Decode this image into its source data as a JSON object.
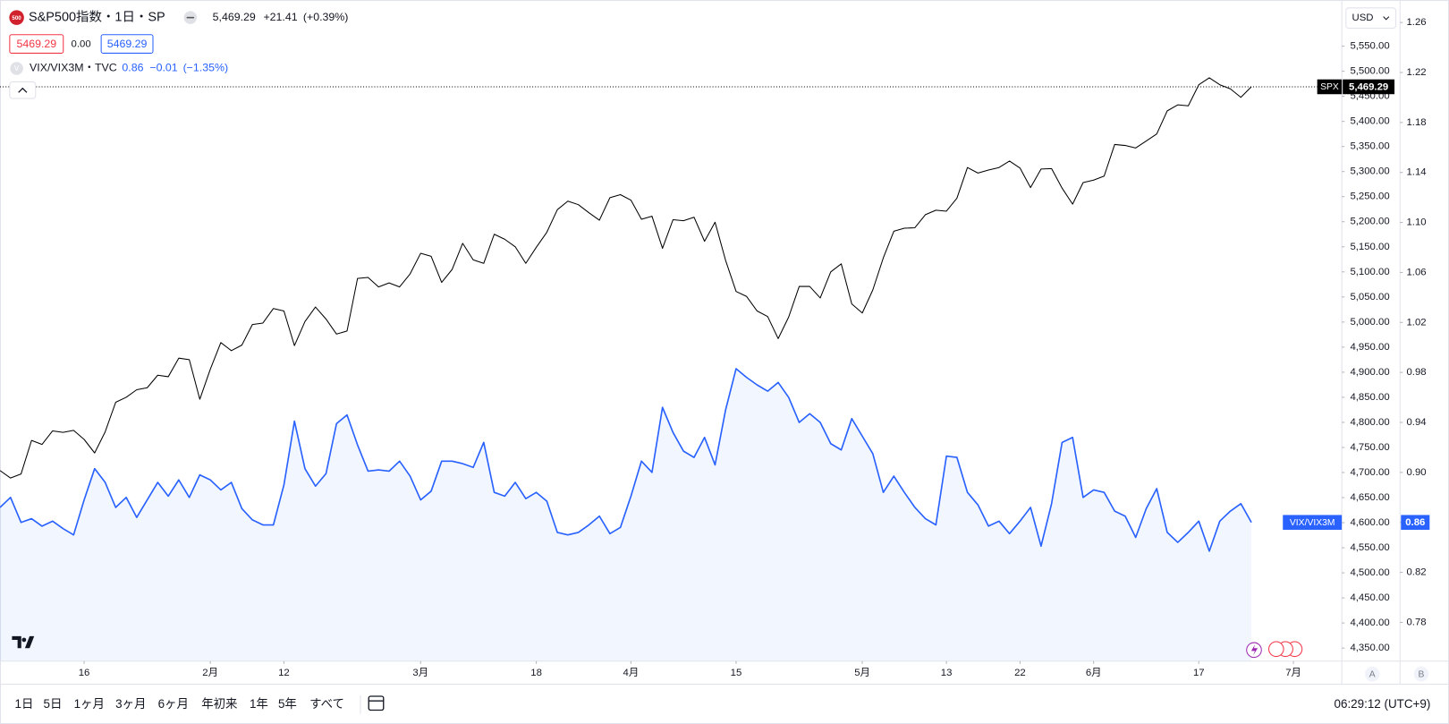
{
  "header": {
    "symbol_icon": "500",
    "title": "S&P500指数・1日・SP",
    "price": "5,469.29",
    "change": "+21.41",
    "change_pct": "(+0.39%)",
    "bid": "5469.29",
    "spread": "0.00",
    "ask": "5469.29",
    "compare_icon": "V",
    "compare_title": "VIX/VIX3M・TVC",
    "compare_price": "0.86",
    "compare_change": "−0.01",
    "compare_change_pct": "(−1.35%)"
  },
  "currency": "USD",
  "chart_data": {
    "type": "line",
    "xlim": [
      0,
      127.6
    ],
    "xticks": [
      {
        "value": 8,
        "label": "16"
      },
      {
        "value": 20,
        "label": "2月"
      },
      {
        "value": 27,
        "label": "12"
      },
      {
        "value": 40,
        "label": "3月"
      },
      {
        "value": 51,
        "label": "18"
      },
      {
        "value": 60,
        "label": "4月"
      },
      {
        "value": 70,
        "label": "15"
      },
      {
        "value": 82,
        "label": "5月"
      },
      {
        "value": 90,
        "label": "13"
      },
      {
        "value": 97,
        "label": "22"
      },
      {
        "value": 104,
        "label": "6月"
      },
      {
        "value": 114,
        "label": "17"
      },
      {
        "value": 123,
        "label": "7月"
      }
    ],
    "ylim": [
      4324,
      5642
    ],
    "yticks": [
      {
        "value": 4350,
        "label": "4,350.00"
      },
      {
        "value": 4400,
        "label": "4,400.00"
      },
      {
        "value": 4450,
        "label": "4,450.00"
      },
      {
        "value": 4500,
        "label": "4,500.00"
      },
      {
        "value": 4550,
        "label": "4,550.00"
      },
      {
        "value": 4600,
        "label": "4,600.00"
      },
      {
        "value": 4650,
        "label": "4,650.00"
      },
      {
        "value": 4700,
        "label": "4,700.00"
      },
      {
        "value": 4750,
        "label": "4,750.00"
      },
      {
        "value": 4800,
        "label": "4,800.00"
      },
      {
        "value": 4850,
        "label": "4,850.00"
      },
      {
        "value": 4900,
        "label": "4,900.00"
      },
      {
        "value": 4950,
        "label": "4,950.00"
      },
      {
        "value": 5000,
        "label": "5,000.00"
      },
      {
        "value": 5050,
        "label": "5,050.00"
      },
      {
        "value": 5100,
        "label": "5,100.00"
      },
      {
        "value": 5150,
        "label": "5,150.00"
      },
      {
        "value": 5200,
        "label": "5,200.00"
      },
      {
        "value": 5250,
        "label": "5,250.00"
      },
      {
        "value": 5300,
        "label": "5,300.00"
      },
      {
        "value": 5350,
        "label": "5,350.00"
      },
      {
        "value": 5400,
        "label": "5,400.00"
      },
      {
        "value": 5450,
        "label": "5,450.00"
      },
      {
        "value": 5500,
        "label": "5,500.00"
      },
      {
        "value": 5550,
        "label": "5,550.00"
      }
    ],
    "y2lim": [
      0.749,
      1.278
    ],
    "y2ticks": [
      0.78,
      0.82,
      0.86,
      {
        "value": 0.9,
        "label": "0.90"
      },
      0.94,
      0.98,
      1.02,
      1.06,
      {
        "value": 1.1,
        "label": "1.10"
      },
      1.14,
      1.18,
      1.22,
      1.26
    ],
    "series": [
      {
        "name": "SPX",
        "color": "#000000",
        "last_label": "5,469.29",
        "values": [
          4704,
          4689,
          4697,
          4764,
          4756,
          4783,
          4780,
          4784,
          4766,
          4739,
          4781,
          4840,
          4850,
          4865,
          4869,
          4894,
          4891,
          4928,
          4925,
          4846,
          4906,
          4959,
          4943,
          4954,
          4995,
          4998,
          5027,
          5022,
          4953,
          5001,
          5030,
          5006,
          4976,
          4982,
          5087,
          5089,
          5070,
          5078,
          5070,
          5096,
          5137,
          5131,
          5079,
          5105,
          5157,
          5124,
          5117,
          5175,
          5165,
          5150,
          5117,
          5149,
          5179,
          5224,
          5241,
          5234,
          5218,
          5203,
          5248,
          5254,
          5243,
          5205,
          5211,
          5147,
          5204,
          5202,
          5209,
          5161,
          5199,
          5123,
          5061,
          5051,
          5022,
          5011,
          4967,
          5010,
          5071,
          5071,
          5048,
          5100,
          5116,
          5036,
          5018,
          5064,
          5128,
          5181,
          5187,
          5188,
          5214,
          5223,
          5221,
          5247,
          5308,
          5297,
          5303,
          5308,
          5321,
          5307,
          5268,
          5305,
          5306,
          5267,
          5235,
          5278,
          5283,
          5291,
          5354,
          5352,
          5347,
          5361,
          5375,
          5421,
          5433,
          5431,
          5473,
          5487,
          5473,
          5465,
          5448,
          5469
        ]
      },
      {
        "name": "VIX/VIX3M",
        "color": "#2962ff",
        "axis": "y2",
        "area": true,
        "last_label": "0.86",
        "values": [
          0.872,
          0.88,
          0.86,
          0.863,
          0.857,
          0.861,
          0.855,
          0.85,
          0.878,
          0.903,
          0.892,
          0.872,
          0.88,
          0.864,
          0.878,
          0.892,
          0.881,
          0.894,
          0.88,
          0.898,
          0.894,
          0.886,
          0.892,
          0.871,
          0.862,
          0.858,
          0.858,
          0.89,
          0.941,
          0.903,
          0.889,
          0.899,
          0.939,
          0.946,
          0.922,
          0.901,
          0.902,
          0.901,
          0.909,
          0.897,
          0.878,
          0.885,
          0.909,
          0.909,
          0.907,
          0.904,
          0.924,
          0.884,
          0.881,
          0.892,
          0.879,
          0.884,
          0.877,
          0.852,
          0.85,
          0.852,
          0.858,
          0.865,
          0.851,
          0.856,
          0.881,
          0.909,
          0.9,
          0.952,
          0.932,
          0.917,
          0.912,
          0.928,
          0.906,
          0.95,
          0.983,
          0.976,
          0.97,
          0.965,
          0.972,
          0.96,
          0.94,
          0.947,
          0.94,
          0.923,
          0.918,
          0.943,
          0.929,
          0.915,
          0.884,
          0.897,
          0.884,
          0.872,
          0.863,
          0.858,
          0.913,
          0.912,
          0.884,
          0.874,
          0.857,
          0.861,
          0.851,
          0.861,
          0.872,
          0.841,
          0.875,
          0.924,
          0.928,
          0.88,
          0.886,
          0.884,
          0.869,
          0.865,
          0.848,
          0.871,
          0.887,
          0.852,
          0.844,
          0.852,
          0.861,
          0.837,
          0.861,
          0.869,
          0.875,
          0.86
        ]
      }
    ]
  },
  "toolbar": {
    "ranges": [
      "1日",
      "5日",
      "1ヶ月",
      "3ヶ月",
      "6ヶ月",
      "年初来",
      "1年",
      "5年",
      "すべて"
    ],
    "clock": "06:29:12 (UTC+9)",
    "scale_buttons": [
      "A",
      "B"
    ]
  }
}
